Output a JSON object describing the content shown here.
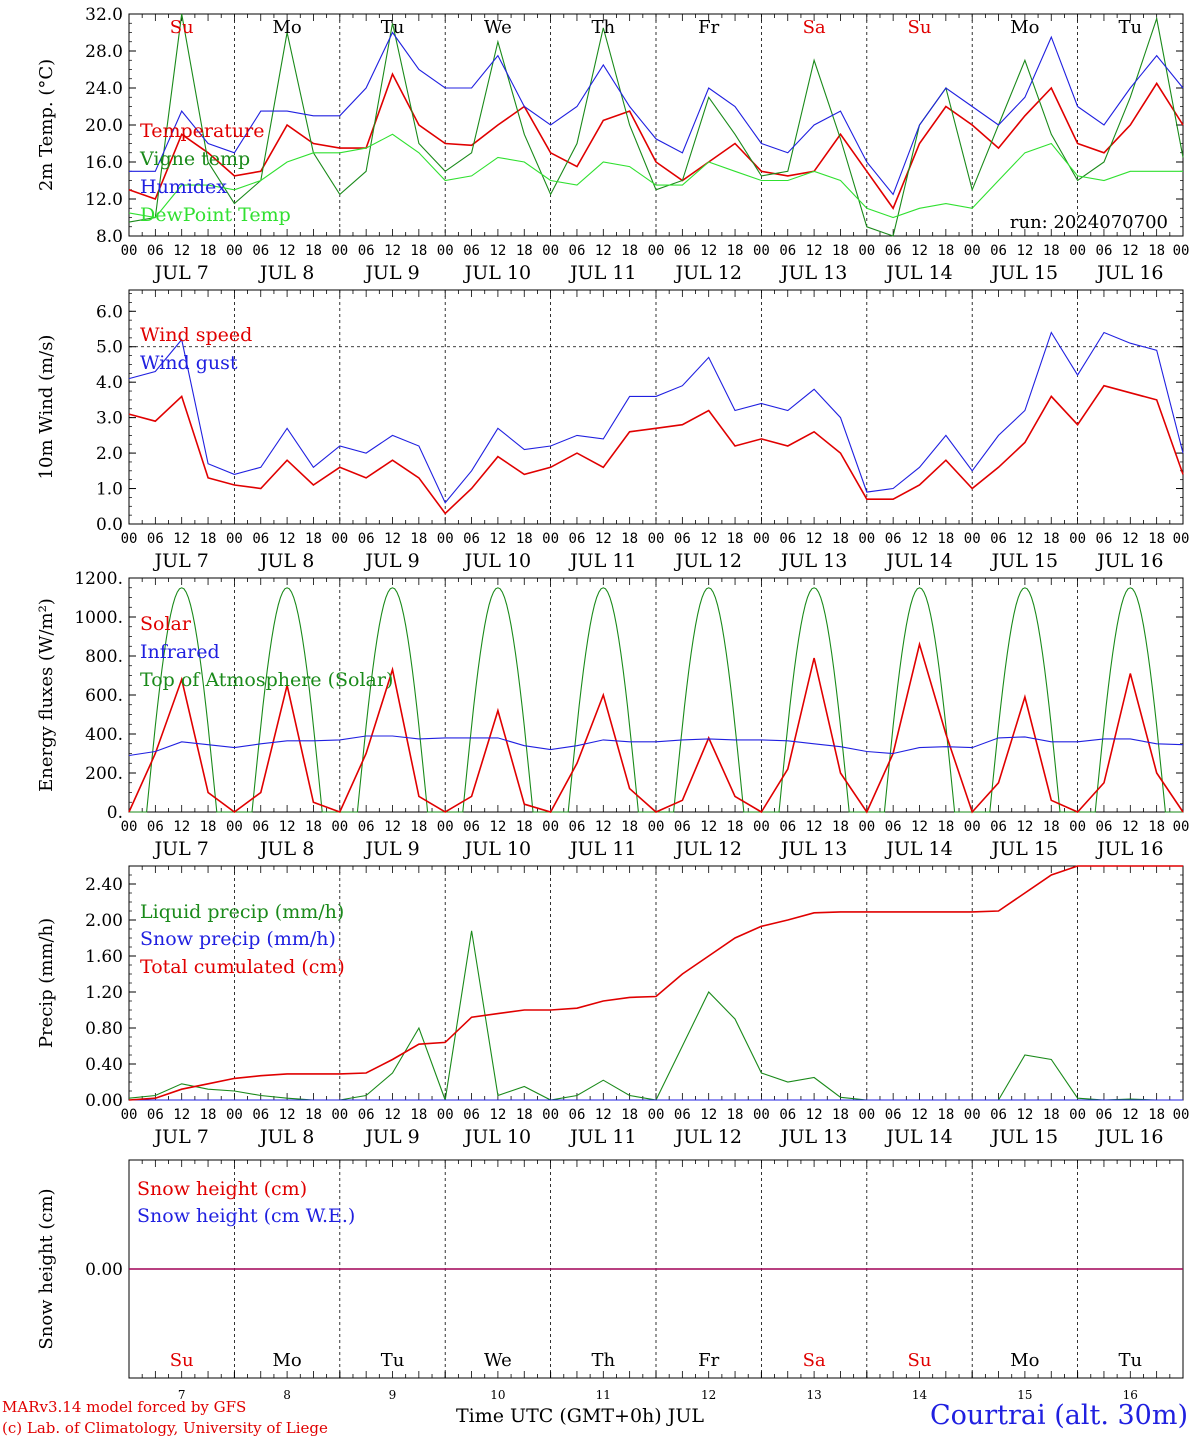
{
  "colors": {
    "red": "#e00000",
    "green": "#1a8a1a",
    "blue": "#2020e0",
    "lime": "#30e030",
    "purple": "#800080"
  },
  "run_label": "run: 2024070700",
  "hour_labels": [
    "00",
    "06",
    "12",
    "18"
  ],
  "last_hour_label": "00",
  "date_labels": [
    "JUL  7",
    "JUL  8",
    "JUL  9",
    "JUL 10",
    "JUL 11",
    "JUL 12",
    "JUL 13",
    "JUL 14",
    "JUL 15",
    "JUL 16"
  ],
  "days_top": [
    {
      "label": "Su",
      "color": "red"
    },
    {
      "label": "Mo",
      "color": "black"
    },
    {
      "label": "Tu",
      "color": "black"
    },
    {
      "label": "We",
      "color": "black"
    },
    {
      "label": "Th",
      "color": "black"
    },
    {
      "label": "Fr",
      "color": "black"
    },
    {
      "label": "Sa",
      "color": "red"
    },
    {
      "label": "Su",
      "color": "red"
    },
    {
      "label": "Mo",
      "color": "black"
    },
    {
      "label": "Tu",
      "color": "black"
    }
  ],
  "day_numbers": [
    "7",
    "8",
    "9",
    "10",
    "11",
    "12",
    "13",
    "14",
    "15",
    "16"
  ],
  "x_title": "Time UTC (GMT+0h) JUL",
  "credit_1": "MARv3.14 model forced by GFS",
  "credit_2": "(c) Lab. of Climatology, University of Liege",
  "station": "Courtrai (alt. 30m)",
  "chart_data": [
    {
      "type": "line",
      "ylabel": "2m Temp. (°C)",
      "ylim": [
        8,
        32
      ],
      "yticks": [
        "8.0",
        "12.0",
        "16.0",
        "20.0",
        "24.0",
        "28.0",
        "32.0"
      ],
      "ytick_values": [
        8,
        12,
        16,
        20,
        24,
        28,
        32
      ],
      "legend": [
        "Temperature",
        "Vigne temp",
        "Humidex",
        "DewPoint Temp"
      ],
      "x_hours": [
        0,
        6,
        12,
        18,
        24,
        30,
        36,
        42,
        48,
        54,
        60,
        66,
        72,
        78,
        84,
        90,
        96,
        102,
        108,
        114,
        120,
        126,
        132,
        138,
        144,
        150,
        156,
        162,
        168,
        174,
        180,
        186,
        192,
        198,
        204,
        210,
        216,
        222,
        228,
        234,
        240
      ],
      "series": [
        {
          "name": "Temperature",
          "color": "red",
          "values": [
            13,
            12,
            19,
            17,
            14.5,
            15,
            20,
            18,
            17.5,
            17.5,
            25.5,
            20,
            18,
            17.8,
            20,
            22,
            17,
            15.5,
            20.5,
            21.5,
            16,
            14,
            16,
            18,
            15,
            14.5,
            15,
            19,
            15,
            11,
            18,
            22,
            20,
            17.5,
            21,
            24,
            18,
            17,
            20,
            24.5,
            20
          ]
        },
        {
          "name": "Vigne temp",
          "color": "green",
          "values": [
            9.5,
            10,
            32,
            16,
            11.5,
            14,
            30,
            17,
            12.5,
            15,
            31,
            18,
            15,
            17,
            29,
            19,
            12.5,
            18,
            30.5,
            20,
            13,
            14,
            23,
            19,
            14.5,
            15,
            27,
            18.5,
            9,
            8,
            20,
            24,
            13,
            20,
            27,
            19,
            14,
            16,
            23,
            31.5,
            16.5
          ]
        },
        {
          "name": "Humidex",
          "color": "blue",
          "values": [
            15,
            15,
            21.5,
            18,
            17,
            21.5,
            21.5,
            21,
            21,
            24,
            30,
            26,
            24,
            24,
            27.5,
            22,
            20,
            22,
            26.5,
            22,
            18.5,
            17,
            24,
            22,
            18,
            17,
            20,
            21.5,
            16,
            12.5,
            20,
            24,
            22,
            20,
            23,
            29.5,
            22,
            20,
            24,
            27.5,
            24
          ]
        },
        {
          "name": "DewPoint Temp",
          "color": "lime",
          "values": [
            10.5,
            10,
            13.5,
            13.5,
            13,
            14,
            16,
            17,
            17,
            17.5,
            19,
            17,
            14,
            14.5,
            16.5,
            16,
            14,
            13.5,
            16,
            15.5,
            13.5,
            13.5,
            16,
            15,
            14,
            14,
            15,
            14,
            11,
            10,
            11,
            11.5,
            11,
            14,
            17,
            18,
            14.5,
            14,
            15,
            15,
            15
          ]
        }
      ]
    },
    {
      "type": "line",
      "ylabel": "10m Wind (m/s)",
      "ylim": [
        0,
        6.6
      ],
      "yticks": [
        "0.0",
        "1.0",
        "2.0",
        "3.0",
        "4.0",
        "5.0",
        "6.0"
      ],
      "ytick_values": [
        0,
        1,
        2,
        3,
        4,
        5,
        6
      ],
      "reference_line": 5.0,
      "legend": [
        "Wind speed",
        "Wind gust"
      ],
      "x_hours": [
        0,
        6,
        12,
        18,
        24,
        30,
        36,
        42,
        48,
        54,
        60,
        66,
        72,
        78,
        84,
        90,
        96,
        102,
        108,
        114,
        120,
        126,
        132,
        138,
        144,
        150,
        156,
        162,
        168,
        174,
        180,
        186,
        192,
        198,
        204,
        210,
        216,
        222,
        228,
        234,
        240
      ],
      "series": [
        {
          "name": "Wind speed",
          "color": "red",
          "values": [
            3.1,
            2.9,
            3.6,
            1.3,
            1.1,
            1.0,
            1.8,
            1.1,
            1.6,
            1.3,
            1.8,
            1.3,
            0.3,
            1.0,
            1.9,
            1.4,
            1.6,
            2.0,
            1.6,
            2.6,
            2.7,
            2.8,
            3.2,
            2.2,
            2.4,
            2.2,
            2.6,
            2.0,
            0.7,
            0.7,
            1.1,
            1.8,
            1.0,
            1.6,
            2.3,
            3.6,
            2.8,
            3.9,
            3.7,
            3.5,
            1.4
          ]
        },
        {
          "name": "Wind gust",
          "color": "blue",
          "values": [
            4.1,
            4.3,
            5.2,
            1.7,
            1.4,
            1.6,
            2.7,
            1.6,
            2.2,
            2.0,
            2.5,
            2.2,
            0.6,
            1.5,
            2.7,
            2.1,
            2.2,
            2.5,
            2.4,
            3.6,
            3.6,
            3.9,
            4.7,
            3.2,
            3.4,
            3.2,
            3.8,
            3.0,
            0.9,
            1.0,
            1.6,
            2.5,
            1.5,
            2.5,
            3.2,
            5.4,
            4.2,
            5.4,
            5.1,
            4.9,
            2.0
          ]
        }
      ]
    },
    {
      "type": "line",
      "ylabel": "Energy fluxes (W/m²)",
      "ylim": [
        0,
        1200
      ],
      "yticks": [
        "0.",
        "200.",
        "400.",
        "600.",
        "800.",
        "1000.",
        "1200."
      ],
      "ytick_values": [
        0,
        200,
        400,
        600,
        800,
        1000,
        1200
      ],
      "legend": [
        "Solar",
        "Infrared",
        "Top of Atmosphere (Solar)"
      ],
      "toa_peak": 1150,
      "toa_sunrise_hour": 4,
      "toa_sunset_hour": 20,
      "x_hours": [
        0,
        6,
        12,
        18,
        24,
        30,
        36,
        42,
        48,
        54,
        60,
        66,
        72,
        78,
        84,
        90,
        96,
        102,
        108,
        114,
        120,
        126,
        132,
        138,
        144,
        150,
        156,
        162,
        168,
        174,
        180,
        186,
        192,
        198,
        204,
        210,
        216,
        222,
        228,
        234,
        240
      ],
      "series": [
        {
          "name": "Solar",
          "color": "red",
          "values": [
            0,
            300,
            680,
            100,
            0,
            100,
            650,
            50,
            0,
            300,
            730,
            80,
            0,
            80,
            520,
            40,
            0,
            250,
            600,
            120,
            0,
            60,
            380,
            80,
            0,
            220,
            790,
            200,
            0,
            300,
            860,
            400,
            0,
            150,
            590,
            60,
            0,
            150,
            710,
            200,
            0
          ]
        },
        {
          "name": "Infrared",
          "color": "blue",
          "values": [
            290,
            310,
            360,
            345,
            330,
            350,
            365,
            365,
            370,
            390,
            390,
            375,
            380,
            380,
            380,
            340,
            320,
            340,
            370,
            360,
            360,
            370,
            375,
            370,
            370,
            365,
            350,
            335,
            310,
            300,
            330,
            335,
            330,
            380,
            385,
            360,
            360,
            375,
            375,
            350,
            345
          ]
        }
      ]
    },
    {
      "type": "line",
      "ylabel": "Precip (mm/h)",
      "ylim": [
        0,
        2.6
      ],
      "yticks": [
        "0.00",
        "0.40",
        "0.80",
        "1.20",
        "1.60",
        "2.00",
        "2.40"
      ],
      "ytick_values": [
        0,
        0.4,
        0.8,
        1.2,
        1.6,
        2.0,
        2.4
      ],
      "legend": [
        "Liquid precip (mm/h)",
        "Snow precip (mm/h)",
        "Total cumulated (cm)"
      ],
      "x_hours": [
        0,
        6,
        12,
        18,
        24,
        30,
        36,
        42,
        48,
        54,
        60,
        66,
        72,
        78,
        84,
        90,
        96,
        102,
        108,
        114,
        120,
        126,
        132,
        138,
        144,
        150,
        156,
        162,
        168,
        174,
        180,
        186,
        192,
        198,
        204,
        210,
        216,
        222,
        228,
        234,
        240
      ],
      "series": [
        {
          "name": "Liquid precip (mm/h)",
          "color": "green",
          "values": [
            0.02,
            0.05,
            0.18,
            0.12,
            0.1,
            0.05,
            0.02,
            0.0,
            0.0,
            0.05,
            0.3,
            0.8,
            0,
            1.88,
            0.05,
            0.15,
            0,
            0.05,
            0.22,
            0.05,
            0,
            0.6,
            1.2,
            0.9,
            0.3,
            0.2,
            0.25,
            0.03,
            0,
            0,
            0,
            0,
            0,
            0,
            0.5,
            0.45,
            0.02,
            0,
            0.01,
            0,
            0
          ]
        },
        {
          "name": "Snow precip (mm/h)",
          "color": "blue",
          "values": [
            0,
            0,
            0,
            0,
            0,
            0,
            0,
            0,
            0,
            0,
            0,
            0,
            0,
            0,
            0,
            0,
            0,
            0,
            0,
            0,
            0,
            0,
            0,
            0,
            0,
            0,
            0,
            0,
            0,
            0,
            0,
            0,
            0,
            0,
            0,
            0,
            0,
            0,
            0,
            0,
            0
          ]
        },
        {
          "name": "Total cumulated (cm)",
          "color": "red",
          "values": [
            0.0,
            0.02,
            0.12,
            0.18,
            0.24,
            0.27,
            0.29,
            0.29,
            0.29,
            0.3,
            0.45,
            0.62,
            0.64,
            0.92,
            0.96,
            1.0,
            1.0,
            1.02,
            1.1,
            1.14,
            1.15,
            1.4,
            1.6,
            1.8,
            1.93,
            2.0,
            2.08,
            2.09,
            2.09,
            2.09,
            2.09,
            2.09,
            2.09,
            2.1,
            2.3,
            2.5,
            2.6,
            2.6,
            2.6,
            2.6,
            2.6
          ]
        }
      ]
    },
    {
      "type": "line",
      "ylabel": "Snow height (cm)",
      "ylim": [
        -1,
        1
      ],
      "yticks": [
        "0.00"
      ],
      "ytick_values": [
        0
      ],
      "legend": [
        "Snow height (cm)",
        "Snow height (cm W.E.)"
      ],
      "x_hours": [
        0,
        240
      ],
      "series": [
        {
          "name": "Snow height (cm)",
          "color": "red",
          "values": [
            0,
            0
          ]
        },
        {
          "name": "Snow height (cm W.E.)",
          "color": "purple",
          "values": [
            0,
            0
          ]
        }
      ]
    }
  ]
}
